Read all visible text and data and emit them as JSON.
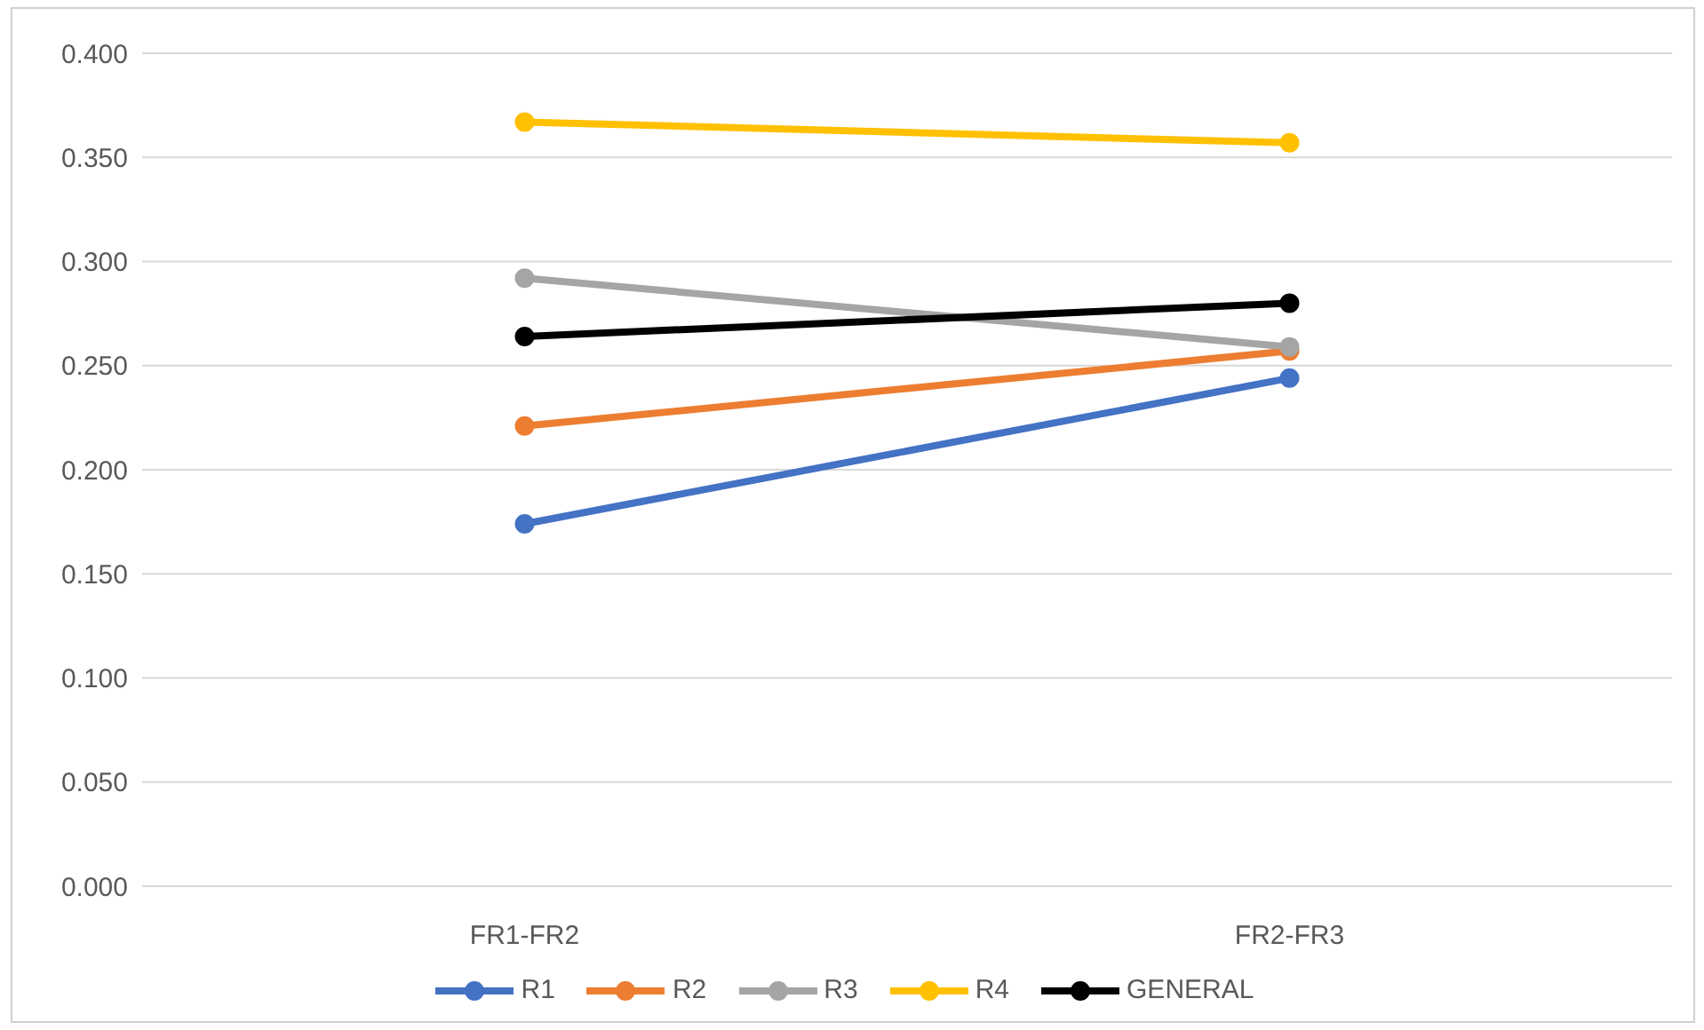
{
  "chart_data": {
    "type": "line",
    "categories": [
      "FR1-FR2",
      "FR2-FR3"
    ],
    "series": [
      {
        "name": "R1",
        "color": "#4472c4",
        "values": [
          0.174,
          0.244
        ]
      },
      {
        "name": "R2",
        "color": "#ed7d31",
        "values": [
          0.221,
          0.257
        ]
      },
      {
        "name": "R3",
        "color": "#a5a5a5",
        "values": [
          0.292,
          0.259
        ]
      },
      {
        "name": "R4",
        "color": "#ffc000",
        "values": [
          0.367,
          0.357
        ]
      },
      {
        "name": "GENERAL",
        "color": "#000000",
        "values": [
          0.264,
          0.28
        ]
      }
    ],
    "ylim": [
      0,
      0.4
    ],
    "yticks": [
      {
        "value": 0,
        "label": "0.000"
      },
      {
        "value": 0.05,
        "label": "0.050"
      },
      {
        "value": 0.1,
        "label": "0.100"
      },
      {
        "value": 0.15,
        "label": "0.150"
      },
      {
        "value": 0.2,
        "label": "0.200"
      },
      {
        "value": 0.25,
        "label": "0.250"
      },
      {
        "value": 0.3,
        "label": "0.300"
      },
      {
        "value": 0.35,
        "label": "0.350"
      },
      {
        "value": 0.4,
        "label": "0.400"
      }
    ],
    "grid": "y",
    "legend": "bottom",
    "marker": "circle",
    "line_style": "solid"
  }
}
